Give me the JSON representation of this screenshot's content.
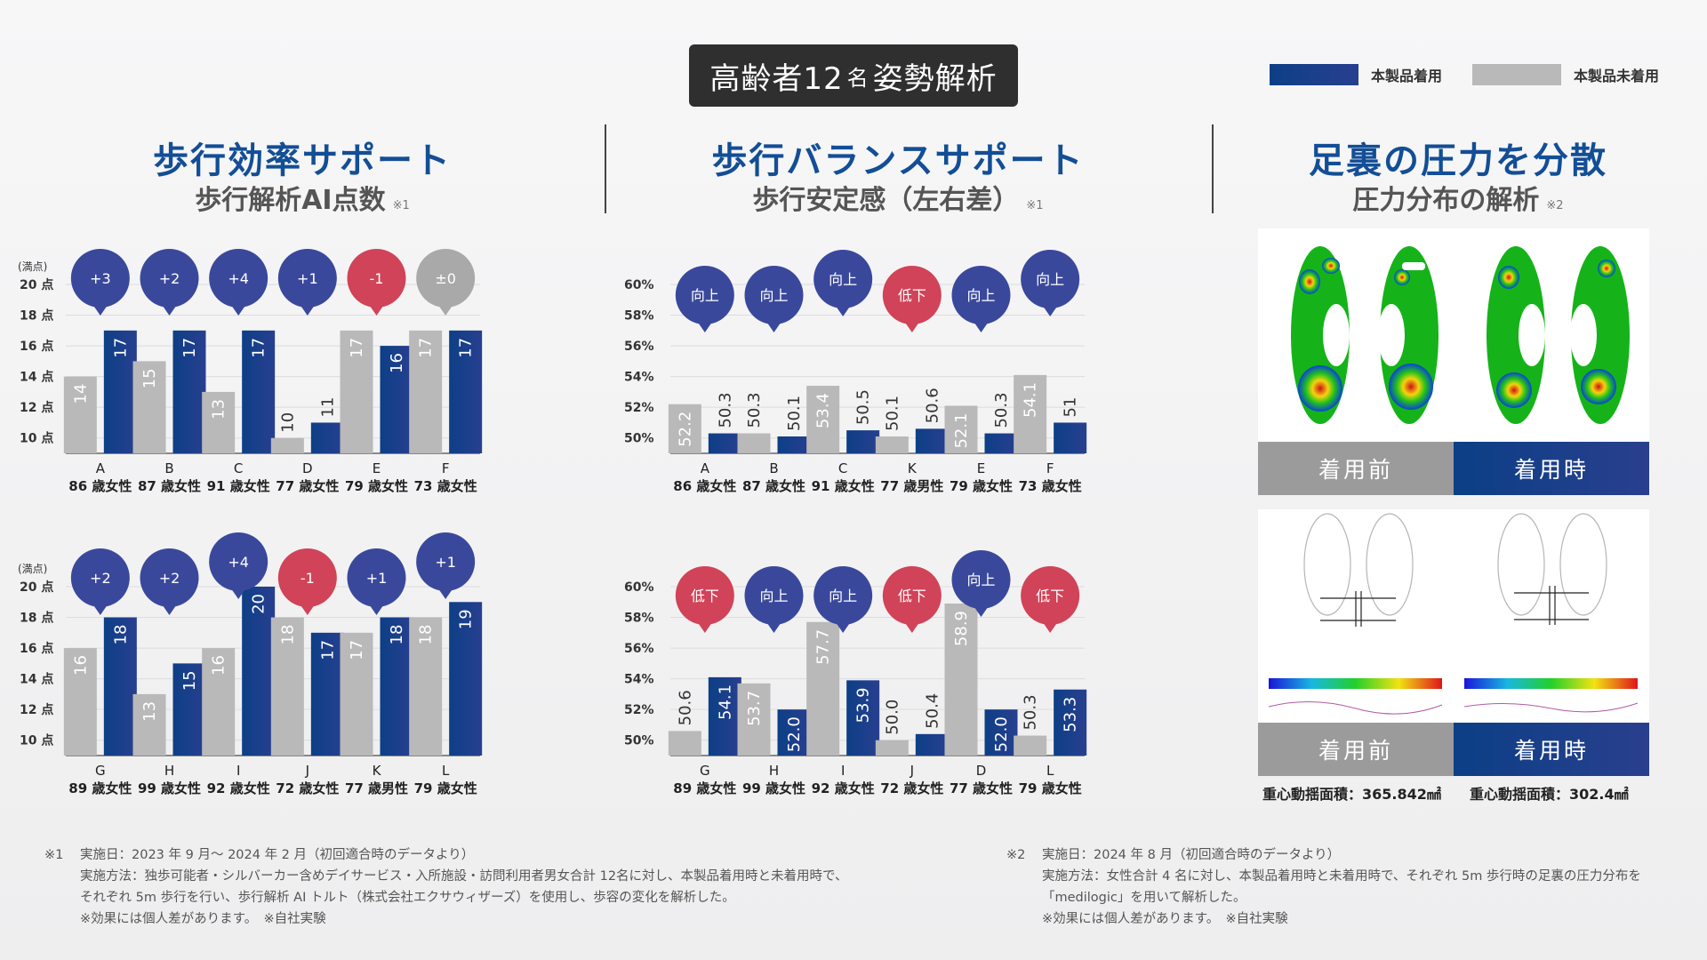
{
  "header": {
    "title_main": "高齢者12",
    "title_small": "名",
    "title_tail": "姿勢解析"
  },
  "legend": {
    "worn": "本製品着用",
    "not_worn": "本製品未着用",
    "worn_color": "#1a3f88",
    "not_worn_color": "#b9b9b9"
  },
  "colors": {
    "up": "#3a489c",
    "down": "#d14358",
    "neutral": "#a9a9a9"
  },
  "sections": [
    {
      "title": "歩行効率サポート",
      "subtitle": "歩行解析AI点数",
      "note": "※1"
    },
    {
      "title": "歩行バランスサポート",
      "subtitle": "歩行安定感（左右差）",
      "note": "※1"
    },
    {
      "title": "足裏の圧力を分散",
      "subtitle": "圧力分布の解析",
      "note": "※2"
    }
  ],
  "chart_data": [
    {
      "type": "bar",
      "title": "歩行解析AI点数 (1)",
      "ylabel": "(満点)",
      "ylim": [
        9,
        20
      ],
      "yticks": [
        "20 点",
        "18 点",
        "16 点",
        "14 点",
        "12 点",
        "10 点"
      ],
      "ytick_values": [
        20,
        18,
        16,
        14,
        12,
        10
      ],
      "categories": [
        "A",
        "B",
        "C",
        "D",
        "E",
        "F"
      ],
      "sublabels": [
        "86 歳女性",
        "87 歳女性",
        "91 歳女性",
        "77 歳女性",
        "79 歳女性",
        "73 歳女性"
      ],
      "series": [
        {
          "name": "本製品未着用",
          "values": [
            14,
            15,
            13,
            10,
            17,
            17
          ],
          "labels": [
            "14",
            "15",
            "13",
            "10",
            "17",
            "17"
          ]
        },
        {
          "name": "本製品着用",
          "values": [
            17,
            17,
            17,
            11,
            16,
            17
          ],
          "labels": [
            "17",
            "17",
            "17",
            "11",
            "16",
            "17"
          ]
        }
      ],
      "badges": [
        {
          "text": "+3",
          "kind": "up",
          "raised": false
        },
        {
          "text": "+2",
          "kind": "up",
          "raised": false
        },
        {
          "text": "+4",
          "kind": "up",
          "raised": false
        },
        {
          "text": "+1",
          "kind": "up",
          "raised": false
        },
        {
          "text": "-1",
          "kind": "down",
          "raised": false
        },
        {
          "text": "±0",
          "kind": "neutral",
          "raised": false
        }
      ]
    },
    {
      "type": "bar",
      "title": "歩行解析AI点数 (2)",
      "ylabel": "(満点)",
      "ylim": [
        9,
        20
      ],
      "yticks": [
        "20 点",
        "18 点",
        "16 点",
        "14 点",
        "12 点",
        "10 点"
      ],
      "ytick_values": [
        20,
        18,
        16,
        14,
        12,
        10
      ],
      "categories": [
        "G",
        "H",
        "I",
        "J",
        "K",
        "L"
      ],
      "sublabels": [
        "89 歳女性",
        "99 歳女性",
        "92 歳女性",
        "72 歳女性",
        "77 歳男性",
        "79 歳女性"
      ],
      "series": [
        {
          "name": "本製品未着用",
          "values": [
            16,
            13,
            16,
            18,
            17,
            18
          ],
          "labels": [
            "16",
            "13",
            "16",
            "18",
            "17",
            "18"
          ]
        },
        {
          "name": "本製品着用",
          "values": [
            18,
            15,
            20,
            17,
            18,
            19
          ],
          "labels": [
            "18",
            "15",
            "20",
            "17",
            "18",
            "19"
          ]
        }
      ],
      "badges": [
        {
          "text": "+2",
          "kind": "up",
          "raised": false
        },
        {
          "text": "+2",
          "kind": "up",
          "raised": false
        },
        {
          "text": "+4",
          "kind": "up",
          "raised": true
        },
        {
          "text": "-1",
          "kind": "down",
          "raised": false
        },
        {
          "text": "+1",
          "kind": "up",
          "raised": false
        },
        {
          "text": "+1",
          "kind": "up",
          "raised": true
        }
      ]
    },
    {
      "type": "bar",
      "title": "歩行安定感（左右差）(1)",
      "ylabel": "",
      "ylim": [
        49,
        60
      ],
      "yticks": [
        "60%",
        "58%",
        "56%",
        "54%",
        "52%",
        "50%"
      ],
      "ytick_values": [
        60,
        58,
        56,
        54,
        52,
        50
      ],
      "categories": [
        "A",
        "B",
        "C",
        "K",
        "E",
        "F"
      ],
      "sublabels": [
        "86 歳女性",
        "87 歳女性",
        "91 歳女性",
        "77 歳男性",
        "79 歳女性",
        "73 歳女性"
      ],
      "series": [
        {
          "name": "本製品未着用",
          "values": [
            52.2,
            50.3,
            53.4,
            50.1,
            52.1,
            54.1
          ],
          "labels": [
            "52.2",
            "50.3",
            "53.4",
            "50.1",
            "52.1",
            "54.1"
          ]
        },
        {
          "name": "本製品着用",
          "values": [
            50.3,
            50.1,
            50.5,
            50.6,
            50.3,
            51
          ],
          "labels": [
            "50.3",
            "50.1",
            "50.5",
            "50.6",
            "50.3",
            "51"
          ]
        }
      ],
      "badges": [
        {
          "text": "向上",
          "kind": "up",
          "raised": false
        },
        {
          "text": "向上",
          "kind": "up",
          "raised": false
        },
        {
          "text": "向上",
          "kind": "up",
          "raised": true
        },
        {
          "text": "低下",
          "kind": "down",
          "raised": false
        },
        {
          "text": "向上",
          "kind": "up",
          "raised": false
        },
        {
          "text": "向上",
          "kind": "up",
          "raised": true
        }
      ]
    },
    {
      "type": "bar",
      "title": "歩行安定感（左右差）(2)",
      "ylabel": "",
      "ylim": [
        49,
        60
      ],
      "yticks": [
        "60%",
        "58%",
        "56%",
        "54%",
        "52%",
        "50%"
      ],
      "ytick_values": [
        60,
        58,
        56,
        54,
        52,
        50
      ],
      "categories": [
        "G",
        "H",
        "I",
        "J",
        "D",
        "L"
      ],
      "sublabels": [
        "89 歳女性",
        "99 歳女性",
        "92 歳女性",
        "72 歳女性",
        "77 歳女性",
        "79 歳女性"
      ],
      "series": [
        {
          "name": "本製品未着用",
          "values": [
            50.6,
            53.7,
            57.7,
            50.0,
            58.9,
            50.3
          ],
          "labels": [
            "50.6",
            "53.7",
            "57.7",
            "50.0",
            "58.9",
            "50.3"
          ]
        },
        {
          "name": "本製品着用",
          "values": [
            54.1,
            52.0,
            53.9,
            50.4,
            52.0,
            53.3
          ],
          "labels": [
            "54.1",
            "52.0",
            "53.9",
            "50.4",
            "52.0",
            "53.3"
          ]
        }
      ],
      "badges": [
        {
          "text": "低下",
          "kind": "down",
          "raised": false
        },
        {
          "text": "向上",
          "kind": "up",
          "raised": false
        },
        {
          "text": "向上",
          "kind": "up",
          "raised": false
        },
        {
          "text": "低下",
          "kind": "down",
          "raised": false
        },
        {
          "text": "向上",
          "kind": "up",
          "raised": true
        },
        {
          "text": "低下",
          "kind": "down",
          "raised": false
        }
      ]
    }
  ],
  "pressure": {
    "before_label": "着用前",
    "after_label": "着用時",
    "area_before": "重心動揺面積：365.842㎟",
    "area_after": "重心動揺面積：302.4㎟"
  },
  "footnotes": {
    "left": {
      "mark": "※1",
      "line1": "実施日：2023 年 9 月～ 2024 年 2 月（初回適合時のデータより）",
      "line2": "実施方法：独歩可能者・シルバーカー含めデイサービス・入所施設・訪問利用者男女合計 12名に対し、本製品着用時と未着用時で、",
      "line3": "それぞれ 5m 歩行を行い、歩行解析 AI トルト（株式会社エクサウィザーズ）を使用し、歩容の変化を解析した。",
      "line4": "※効果には個人差があります。　※自社実験"
    },
    "right": {
      "mark": "※2",
      "line1": "実施日：2024 年 8 月（初回適合時のデータより）",
      "line2": "実施方法：女性合計 4 名に対し、本製品着用時と未着用時で、それぞれ 5m 歩行時の足裏の圧力分布を",
      "line3": "「medilogic」を用いて解析した。",
      "line4": "※効果には個人差があります。　※自社実験"
    }
  }
}
